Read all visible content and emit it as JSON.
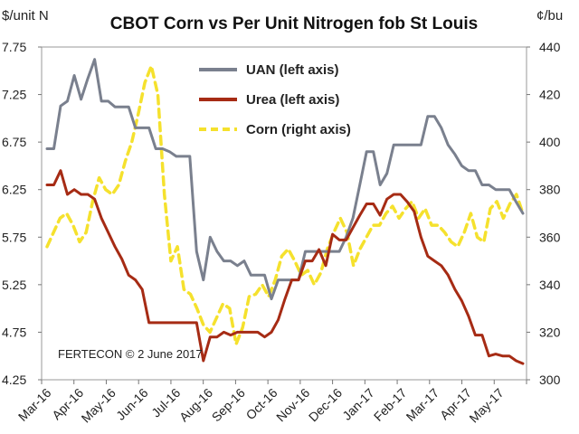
{
  "chart_data": {
    "type": "line",
    "title": "CBOT Corn vs Per Unit Nitrogen fob St Louis",
    "left_unit": "$/unit N",
    "right_unit": "¢/bu",
    "annotation": "FERTECON © 2 June 2017",
    "x_labels": [
      "Mar-16",
      "Apr-16",
      "May-16",
      "Jun-16",
      "Jul-16",
      "Aug-16",
      "Sep-16",
      "Oct-16",
      "Nov-16",
      "Dec-16",
      "Jan-17",
      "Feb-17",
      "Mar-17",
      "Apr-17",
      "May-17"
    ],
    "ylim_left": [
      4.25,
      7.75
    ],
    "yticks_left": [
      "4.25",
      "4.75",
      "5.25",
      "5.75",
      "6.25",
      "6.75",
      "7.25",
      "7.75"
    ],
    "ylim_right": [
      300,
      440
    ],
    "yticks_right": [
      "300",
      "320",
      "340",
      "360",
      "380",
      "400",
      "420",
      "440"
    ],
    "legend_position": "top-center",
    "series": [
      {
        "name": "UAN (left axis)",
        "axis": "left",
        "color": "#7a808e",
        "dash": "solid",
        "values": [
          6.68,
          6.68,
          7.13,
          7.18,
          7.45,
          7.2,
          7.42,
          7.62,
          7.18,
          7.18,
          7.12,
          7.12,
          7.12,
          6.9,
          6.9,
          6.9,
          6.68,
          6.68,
          6.65,
          6.6,
          6.6,
          6.6,
          5.6,
          5.3,
          5.75,
          5.6,
          5.5,
          5.5,
          5.45,
          5.5,
          5.35,
          5.35,
          5.35,
          5.1,
          5.3,
          5.3,
          5.3,
          5.3,
          5.6,
          5.6,
          5.6,
          5.6,
          5.6,
          5.6,
          5.75,
          5.95,
          6.3,
          6.65,
          6.65,
          6.3,
          6.42,
          6.72,
          6.72,
          6.72,
          6.72,
          6.72,
          7.02,
          7.02,
          6.9,
          6.72,
          6.62,
          6.5,
          6.45,
          6.45,
          6.3,
          6.3,
          6.25,
          6.25,
          6.25,
          6.12,
          6.0
        ]
      },
      {
        "name": "Urea (left axis)",
        "axis": "left",
        "color": "#a62b14",
        "dash": "solid",
        "values": [
          6.3,
          6.3,
          6.45,
          6.2,
          6.25,
          6.2,
          6.2,
          6.15,
          5.95,
          5.8,
          5.65,
          5.52,
          5.35,
          5.3,
          5.2,
          4.85,
          4.85,
          4.85,
          4.85,
          4.85,
          4.85,
          4.85,
          4.85,
          4.45,
          4.7,
          4.7,
          4.75,
          4.72,
          4.75,
          4.75,
          4.75,
          4.75,
          4.7,
          4.75,
          4.88,
          5.1,
          5.3,
          5.3,
          5.5,
          5.5,
          5.62,
          5.45,
          5.78,
          5.72,
          5.72,
          5.85,
          5.98,
          6.1,
          6.1,
          5.98,
          6.15,
          6.2,
          6.2,
          6.12,
          6.02,
          5.75,
          5.55,
          5.5,
          5.45,
          5.35,
          5.2,
          5.08,
          4.92,
          4.72,
          4.72,
          4.5,
          4.52,
          4.5,
          4.5,
          4.45,
          4.42
        ]
      },
      {
        "name": "Corn (right axis)",
        "axis": "right",
        "color": "#f5e12d",
        "dash": "dashed",
        "values": [
          356,
          362,
          368,
          370,
          365,
          358,
          362,
          375,
          385,
          380,
          378,
          382,
          392,
          400,
          412,
          425,
          432,
          420,
          378,
          350,
          356,
          338,
          336,
          330,
          323,
          320,
          326,
          332,
          330,
          315,
          322,
          335,
          336,
          340,
          335,
          342,
          352,
          355,
          350,
          344,
          346,
          340,
          345,
          355,
          362,
          368,
          362,
          348,
          355,
          360,
          365,
          365,
          370,
          373,
          368,
          372,
          375,
          368,
          372,
          365,
          365,
          362,
          358,
          356,
          362,
          370,
          360,
          358,
          372,
          375,
          368,
          374,
          378,
          370
        ]
      }
    ]
  }
}
